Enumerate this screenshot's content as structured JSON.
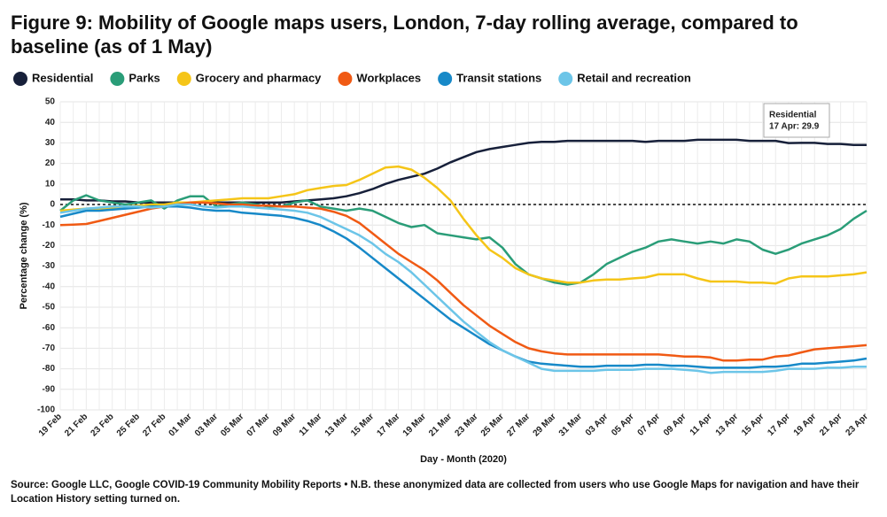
{
  "chart_data": {
    "type": "line",
    "title": "Figure 9: Mobility of Google maps users, London, 7-day rolling average, compared to baseline (as of 1 May)",
    "x_label": "Day - Month (2020)",
    "y_label": "Percentage change (%)",
    "source": "Source: Google LLC, Google COVID-19 Community Mobility Reports • N.B. these anonymized data are collected from users who use Google Maps for navigation and have their Location History setting turned on.",
    "categories": [
      "19 Feb",
      null,
      "21 Feb",
      null,
      "23 Feb",
      null,
      "25 Feb",
      null,
      "27 Feb",
      null,
      "01 Mar",
      null,
      "03 Mar",
      null,
      "05 Mar",
      null,
      "07 Mar",
      null,
      "09 Mar",
      null,
      "11 Mar",
      null,
      "13 Mar",
      null,
      "15 Mar",
      null,
      "17 Mar",
      null,
      "19 Mar",
      null,
      "21 Mar",
      null,
      "23 Mar",
      null,
      "25 Mar",
      null,
      "27 Mar",
      null,
      "29 Mar",
      null,
      "31 Mar",
      null,
      "03 Apr",
      null,
      "05 Apr",
      null,
      "07 Apr",
      null,
      "09 Apr",
      null,
      "11 Apr",
      null,
      "13 Apr",
      null,
      "15 Apr",
      null,
      "17 Apr",
      null,
      "19 Apr",
      null,
      "21 Apr",
      null,
      "23 Apr"
    ],
    "ylim": [
      -100,
      50
    ],
    "yticks": [
      50,
      40,
      30,
      20,
      10,
      0,
      -10,
      -20,
      -30,
      -40,
      -50,
      -60,
      -70,
      -80,
      -90,
      -100
    ],
    "grid": true,
    "baseline": 0,
    "tooltip": {
      "title": "Residential",
      "text": "17 Apr: 29.9"
    },
    "series": [
      {
        "name": "Residential",
        "color": "#17203a",
        "values": [
          2.5,
          2.5,
          2,
          2,
          1.5,
          1.5,
          1,
          1,
          1,
          1,
          1,
          1,
          1,
          1,
          1,
          1,
          1,
          1,
          1.5,
          2,
          2.5,
          3,
          4,
          5.5,
          7.5,
          10,
          12,
          13.5,
          15,
          17.5,
          20.5,
          23,
          25.5,
          27,
          28,
          29,
          30,
          30.5,
          30.5,
          31,
          31,
          31,
          31,
          31,
          31,
          30.5,
          31,
          31,
          31,
          31.5,
          31.5,
          31.5,
          31.5,
          31,
          31,
          31,
          29.9,
          30,
          30,
          29.5,
          29.5,
          29,
          29
        ]
      },
      {
        "name": "Parks",
        "color": "#2a9d78",
        "values": [
          -3,
          2,
          4.5,
          2,
          1,
          0,
          1,
          2,
          -2,
          2,
          4,
          4,
          -1,
          0,
          1,
          0,
          -1,
          -1,
          1,
          2,
          -1,
          -2,
          -3,
          -2,
          -3,
          -6,
          -9,
          -11,
          -10,
          -14,
          -15,
          -16,
          -17,
          -16,
          -21,
          -29,
          -34,
          -36,
          -38,
          -39,
          -38,
          -34,
          -29,
          -26,
          -23,
          -21,
          -18,
          -17,
          -18,
          -19,
          -18,
          -19,
          -17,
          -18,
          -22,
          -24,
          -22,
          -19,
          -17,
          -15,
          -12,
          -7,
          -3
        ]
      },
      {
        "name": "Grocery and pharmacy",
        "color": "#f5c518",
        "values": [
          -3,
          -2.5,
          -2,
          -2,
          -1.5,
          -1,
          -0.5,
          0,
          0,
          1,
          1,
          1.5,
          2,
          2.5,
          3,
          3,
          3,
          4,
          5,
          7,
          8,
          9,
          9.5,
          12,
          15,
          18,
          18.5,
          17,
          13,
          8,
          2,
          -7,
          -15,
          -22,
          -26,
          -31,
          -34,
          -36,
          -37,
          -38,
          -38,
          -37,
          -36.5,
          -36.5,
          -36,
          -35.5,
          -34,
          -34,
          -34,
          -36,
          -37.5,
          -37.5,
          -37.5,
          -38,
          -38,
          -38.5,
          -36,
          -35,
          -35,
          -35,
          -34.5,
          -34,
          -33
        ]
      },
      {
        "name": "Workplaces",
        "color": "#f05a14",
        "values": [
          -10,
          -9.8,
          -9.5,
          -8,
          -6.5,
          -5,
          -3.5,
          -2,
          -1,
          0,
          1,
          1,
          0.5,
          0,
          0,
          -0.5,
          -0.5,
          -1,
          -1,
          -1.5,
          -2,
          -3.5,
          -5.5,
          -9,
          -14,
          -19,
          -24,
          -28,
          -32,
          -37,
          -43,
          -49,
          -54,
          -59,
          -63,
          -67,
          -70,
          -71.5,
          -72.5,
          -73,
          -73,
          -73,
          -73,
          -73,
          -73,
          -73,
          -73,
          -73.5,
          -74,
          -74,
          -74.5,
          -76,
          -76,
          -75.5,
          -75.5,
          -74,
          -73.5,
          -72,
          -70.5,
          -70,
          -69.5,
          -69,
          -68.5
        ]
      },
      {
        "name": "Transit stations",
        "color": "#1789c8",
        "values": [
          -6,
          -4.5,
          -3,
          -3,
          -2.5,
          -2,
          -1.5,
          -1,
          -1,
          -1,
          -1.5,
          -2.5,
          -3,
          -3,
          -4,
          -4.5,
          -5,
          -5.5,
          -6.5,
          -8,
          -10,
          -13,
          -16.5,
          -21,
          -26,
          -31,
          -36,
          -41,
          -46,
          -51,
          -56,
          -60,
          -64,
          -68,
          -71,
          -74,
          -76.5,
          -77.5,
          -78,
          -78.5,
          -79,
          -79,
          -78.5,
          -78.5,
          -78.5,
          -78,
          -78,
          -78.5,
          -78.5,
          -79,
          -79.5,
          -79.5,
          -79.5,
          -79.5,
          -79,
          -79,
          -78.5,
          -77.5,
          -77.5,
          -77,
          -76.5,
          -76,
          -75
        ]
      },
      {
        "name": "Retail and recreation",
        "color": "#6cc5e8",
        "values": [
          -4,
          -3,
          -2,
          -1.5,
          -1,
          -1,
          -1,
          -1.5,
          -1,
          0,
          0,
          -1,
          -1.5,
          -1,
          -1,
          -1.5,
          -2,
          -2.5,
          -3,
          -4,
          -6,
          -9,
          -12,
          -15,
          -19,
          -24,
          -28,
          -33,
          -39,
          -45,
          -51,
          -57,
          -62,
          -67,
          -71,
          -74,
          -77,
          -80,
          -81,
          -81,
          -81,
          -81,
          -80.5,
          -80.5,
          -80.5,
          -80,
          -80,
          -80,
          -80.5,
          -81,
          -82,
          -81.5,
          -81.5,
          -81.5,
          -81.5,
          -81,
          -80,
          -80,
          -80,
          -79.5,
          -79.5,
          -79,
          -79
        ]
      }
    ]
  }
}
